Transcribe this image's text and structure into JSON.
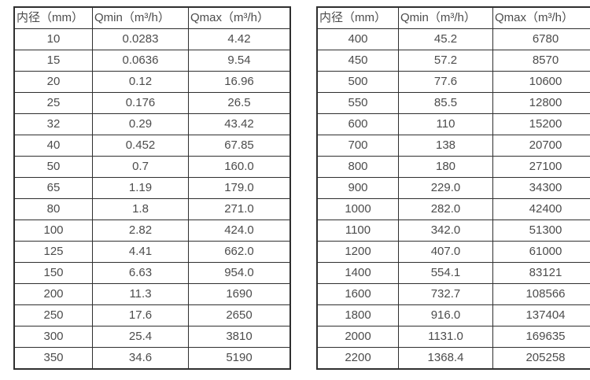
{
  "style": {
    "border_color": "#2f2f2f",
    "text_color": "#4c4c4c",
    "background_color": "#ffffff"
  },
  "chart_data": [
    {
      "type": "table",
      "name": "flow-range-table-dn10-350",
      "columns": [
        "内径（mm）",
        "Qmin（m³/h）",
        "Qmax（m³/h）"
      ],
      "rows": [
        [
          "10",
          "0.0283",
          "4.42"
        ],
        [
          "15",
          "0.0636",
          "9.54"
        ],
        [
          "20",
          "0.12",
          "16.96"
        ],
        [
          "25",
          "0.176",
          "26.5"
        ],
        [
          "32",
          "0.29",
          "43.42"
        ],
        [
          "40",
          "0.452",
          "67.85"
        ],
        [
          "50",
          "0.7",
          "160.0"
        ],
        [
          "65",
          "1.19",
          "179.0"
        ],
        [
          "80",
          "1.8",
          "271.0"
        ],
        [
          "100",
          "2.82",
          "424.0"
        ],
        [
          "125",
          "4.41",
          "662.0"
        ],
        [
          "150",
          "6.63",
          "954.0"
        ],
        [
          "200",
          "11.3",
          "1690"
        ],
        [
          "250",
          "17.6",
          "2650"
        ],
        [
          "300",
          "25.4",
          "3810"
        ],
        [
          "350",
          "34.6",
          "5190"
        ]
      ]
    },
    {
      "type": "table",
      "name": "flow-range-table-dn400-2200",
      "columns": [
        "内径（mm）",
        "Qmin（m³/h）",
        "Qmax（m³/h）"
      ],
      "rows": [
        [
          "400",
          "45.2",
          "6780"
        ],
        [
          "450",
          "57.2",
          "8570"
        ],
        [
          "500",
          "77.6",
          "10600"
        ],
        [
          "550",
          "85.5",
          "12800"
        ],
        [
          "600",
          "110",
          "15200"
        ],
        [
          "700",
          "138",
          "20700"
        ],
        [
          "800",
          "180",
          "27100"
        ],
        [
          "900",
          "229.0",
          "34300"
        ],
        [
          "1000",
          "282.0",
          "42400"
        ],
        [
          "1100",
          "342.0",
          "51300"
        ],
        [
          "1200",
          "407.0",
          "61000"
        ],
        [
          "1400",
          "554.1",
          "83121"
        ],
        [
          "1600",
          "732.7",
          "108566"
        ],
        [
          "1800",
          "916.0",
          "137404"
        ],
        [
          "2000",
          "1131.0",
          "169635"
        ],
        [
          "2200",
          "1368.4",
          "205258"
        ]
      ]
    }
  ]
}
